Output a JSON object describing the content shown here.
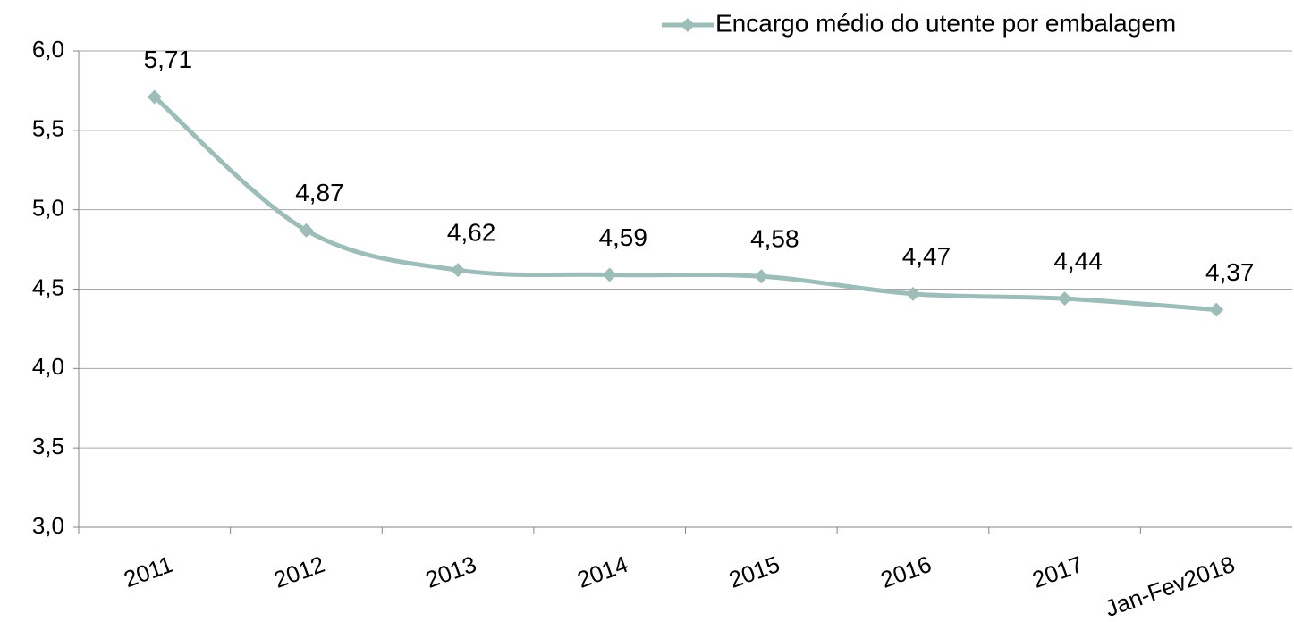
{
  "chart_data": {
    "type": "line",
    "categories": [
      "2011",
      "2012",
      "2013",
      "2014",
      "2015",
      "2016",
      "2017",
      "Jan-Fev2018"
    ],
    "series": [
      {
        "name": "Encargo médio do utente por embalagem",
        "color": "#9dbdb8",
        "values": [
          5.71,
          4.87,
          4.62,
          4.59,
          4.58,
          4.47,
          4.44,
          4.37
        ],
        "value_labels": [
          "5,71",
          "4,87",
          "4,62",
          "4,59",
          "4,58",
          "4,47",
          "4,44",
          "4,37"
        ]
      }
    ],
    "ylim": [
      3,
      6
    ],
    "yticks": [
      {
        "value": 3,
        "label": "3,0"
      },
      {
        "value": 3.5,
        "label": "3,5"
      },
      {
        "value": 4,
        "label": "4,0"
      },
      {
        "value": 4.5,
        "label": "4,5"
      },
      {
        "value": 5,
        "label": "5,0"
      },
      {
        "value": 5.5,
        "label": "5,5"
      },
      {
        "value": 6,
        "label": "6,0"
      }
    ],
    "grid": true,
    "legend": "top-right",
    "smooth": true
  }
}
